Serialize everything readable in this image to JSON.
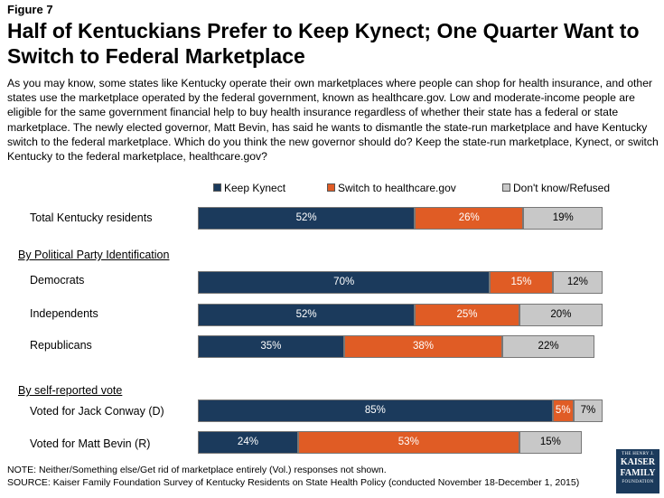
{
  "figure_label": "Figure 7",
  "title": "Half of Kentuckians Prefer to Keep Kynect; One Quarter Want to Switch to Federal Marketplace",
  "question": "As you may know, some states like Kentucky operate their own marketplaces where people can shop for health insurance, and other states use the marketplace operated by the federal government, known as healthcare.gov. Low and moderate-income people are eligible for the same government financial help to buy health insurance regardless of whether their state has a federal or state marketplace. The newly elected governor, Matt Bevin, has said he wants to dismantle the state-run marketplace and have Kentucky switch to the federal marketplace. Which do you think the new governor should do? Keep the state-run marketplace, Kynect, or switch Kentucky to the federal marketplace, healthcare.gov?",
  "colors": {
    "keep": "#1b3a5c",
    "switch": "#e05c25",
    "dk": "#c8c8c8"
  },
  "chart_data": {
    "type": "bar",
    "orientation": "horizontal",
    "stacked": true,
    "series": [
      {
        "name": "Keep Kynect",
        "key": "keep"
      },
      {
        "name": "Switch to healthcare.gov",
        "key": "switch"
      },
      {
        "name": "Don't know/Refused",
        "key": "dk"
      }
    ],
    "sections": [
      {
        "heading": "",
        "rows": [
          {
            "label": "Total Kentucky residents",
            "values": [
              52,
              26,
              19
            ]
          }
        ]
      },
      {
        "heading": "By Political Party Identification",
        "rows": [
          {
            "label": "Democrats",
            "values": [
              70,
              15,
              12
            ]
          },
          {
            "label": "Independents",
            "values": [
              52,
              25,
              20
            ]
          },
          {
            "label": "Republicans",
            "values": [
              35,
              38,
              22
            ]
          }
        ]
      },
      {
        "heading": "By self-reported vote",
        "rows": [
          {
            "label": "Voted for Jack Conway (D)",
            "values": [
              85,
              5,
              7
            ]
          },
          {
            "label": "Voted for Matt Bevin (R)",
            "values": [
              24,
              53,
              15
            ]
          }
        ]
      }
    ],
    "value_suffix": "%",
    "xlim": [
      0,
      100
    ]
  },
  "note": "NOTE: Neither/Something else/Get rid of marketplace entirely (Vol.) responses not shown.",
  "source": "SOURCE: Kaiser Family Foundation Survey of Kentucky Residents on State Health Policy (conducted November 18-December 1, 2015)",
  "logo": {
    "line1": "THE HENRY J.",
    "line2": "KAISER",
    "line3": "FAMILY",
    "line4": "FOUNDATION"
  }
}
